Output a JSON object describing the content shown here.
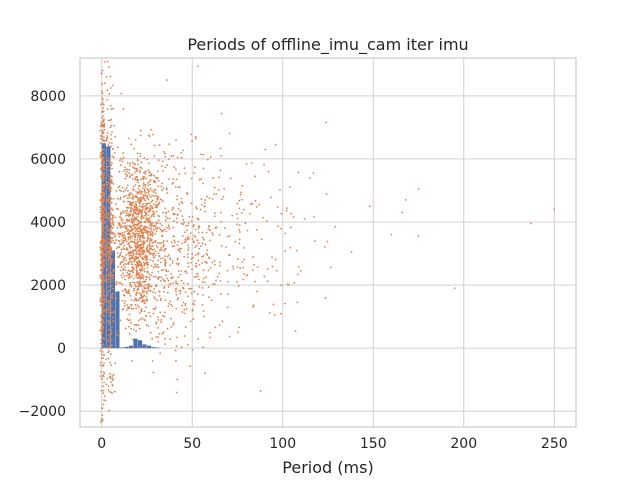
{
  "chart_data": {
    "type": "scatter",
    "title": "Periods of offline_imu_cam iter imu",
    "xlabel": "Period (ms)",
    "ylabel": "",
    "xlim": [
      -12,
      262
    ],
    "ylim": [
      -2500,
      9200
    ],
    "x_ticks": [
      0,
      50,
      100,
      150,
      200,
      250
    ],
    "x_tick_labels": [
      "0",
      "50",
      "100",
      "150",
      "200",
      "250"
    ],
    "y_ticks": [
      -2000,
      0,
      2000,
      4000,
      6000,
      8000
    ],
    "y_tick_labels": [
      "−2000",
      "0",
      "2000",
      "4000",
      "6000",
      "8000"
    ],
    "grid": true,
    "legend": "none",
    "colors": {
      "histogram": "#4c72b0",
      "scatter": "#dd8452"
    },
    "histogram_bins": {
      "bin_width": 2.5,
      "x_start": [
        0,
        2.5,
        5.0,
        7.5,
        10.0,
        12.5,
        15.0,
        17.5,
        20.0,
        22.5,
        25.0,
        27.5,
        30.0
      ],
      "counts": [
        6500,
        6400,
        3100,
        1800,
        20,
        40,
        80,
        300,
        250,
        120,
        80,
        30,
        15
      ]
    },
    "scatter_clusters": [
      {
        "x_center": 0.5,
        "x_spread": 0.6,
        "y_center": 3500,
        "y_spread": 2400,
        "count": 520
      },
      {
        "x_center": 4.5,
        "x_spread": 1.4,
        "y_center": 3000,
        "y_spread": 2200,
        "count": 360
      },
      {
        "x_center": 20.0,
        "x_spread": 6.0,
        "y_center": 3500,
        "y_spread": 1300,
        "count": 1100
      },
      {
        "x_center": 40.0,
        "x_spread": 15.0,
        "y_center": 3200,
        "y_spread": 1500,
        "count": 520
      },
      {
        "x_center": 75.0,
        "x_spread": 20.0,
        "y_center": 3500,
        "y_spread": 1600,
        "count": 160
      }
    ],
    "scatter_points": [
      {
        "x": 36,
        "y": 8500
      },
      {
        "x": 124,
        "y": 7150
      },
      {
        "x": 117,
        "y": 5550
      },
      {
        "x": 115,
        "y": 5400
      },
      {
        "x": 148,
        "y": 4500
      },
      {
        "x": 168,
        "y": 4700
      },
      {
        "x": 166,
        "y": 4300
      },
      {
        "x": 175,
        "y": 5050
      },
      {
        "x": 175,
        "y": 3550
      },
      {
        "x": 160,
        "y": 3600
      },
      {
        "x": 138,
        "y": 3050
      },
      {
        "x": 129,
        "y": 3850
      },
      {
        "x": 195,
        "y": 1900
      },
      {
        "x": 237,
        "y": 3950
      },
      {
        "x": 250,
        "y": 4400
      },
      {
        "x": 110,
        "y": 2450
      },
      {
        "x": 112,
        "y": 4100
      },
      {
        "x": 99,
        "y": 2000
      },
      {
        "x": 0,
        "y": 8700
      },
      {
        "x": 0,
        "y": -1900
      },
      {
        "x": 5,
        "y": 8250
      },
      {
        "x": 57,
        "y": -800
      },
      {
        "x": 41,
        "y": -400
      }
    ]
  }
}
